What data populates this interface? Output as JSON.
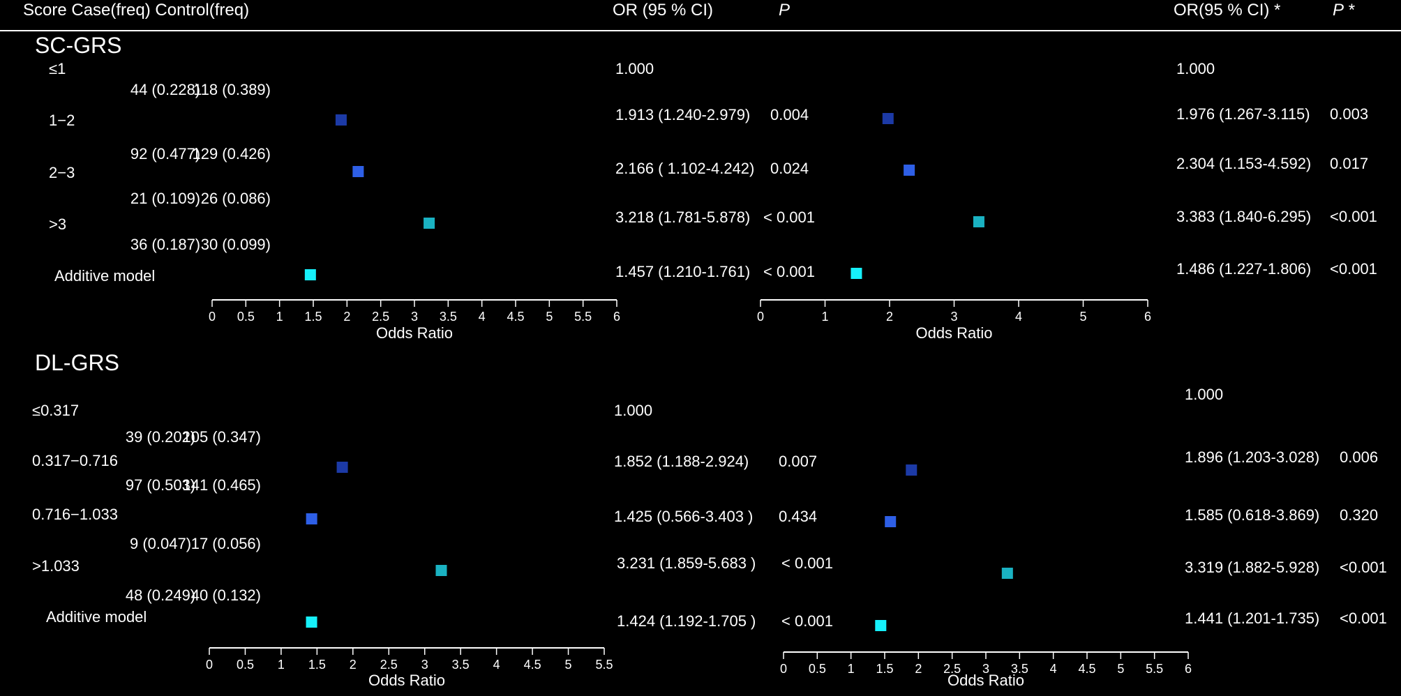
{
  "header": {
    "score_col": "Score Case(freq) Control(freq)",
    "or_col": "OR  (95 % CI)",
    "p_col": "P",
    "or_adj_col": "OR(95 % CI) *",
    "p_adj_col": "P *"
  },
  "palette": {
    "background": "#000000",
    "text": "#ffffff",
    "dark_blue": "#1c3aa6",
    "mid_blue": "#2e5fe6",
    "teal": "#1ab2c2",
    "cyan": "#16f0fa"
  },
  "chart_data": [
    {
      "type": "forest",
      "title": "SC-GRS",
      "xlabel": "Odds Ratio",
      "xlim": [
        0,
        6
      ],
      "xticks": [
        "0",
        "0.5",
        "1",
        "1.5",
        "2",
        "2.5",
        "3",
        "3.5",
        "4",
        "4.5",
        "5",
        "5.5",
        "6"
      ],
      "xlabel_adjusted": "Odds Ratio",
      "xlim_adjusted": [
        0,
        6
      ],
      "xticks_adjusted": [
        "0",
        "1",
        "2",
        "3",
        "4",
        "5",
        "6"
      ],
      "rows": [
        {
          "label": "≤1",
          "case": "44 (0.228)",
          "control": "118 (0.389)",
          "or": null,
          "or_text": "1.000",
          "p": "",
          "or_adj": null,
          "or_adj_text": "1.000",
          "p_adj": "",
          "color": "none"
        },
        {
          "label": "1−2",
          "case": "92 (0.477)",
          "control": "129 (0.426)",
          "or": 1.913,
          "or_text": "1.913 (1.240-2.979)",
          "p": "0.004",
          "or_adj": 1.976,
          "or_adj_text": "1.976 (1.267-3.115)",
          "p_adj": "0.003",
          "color": "dark_blue"
        },
        {
          "label": "2−3",
          "case": "21 (0.109)",
          "control": "26 (0.086)",
          "or": 2.166,
          "or_text": "2.166 ( 1.102-4.242)",
          "p": "0.024",
          "or_adj": 2.304,
          "or_adj_text": "2.304 (1.153-4.592)",
          "p_adj": "0.017",
          "color": "mid_blue"
        },
        {
          "label": ">3",
          "case": "36 (0.187)",
          "control": "30 (0.099)",
          "or": 3.218,
          "or_text": "3.218 (1.781-5.878)",
          "p": "< 0.001",
          "or_adj": 3.383,
          "or_adj_text": "3.383 (1.840-6.295)",
          "p_adj": "<0.001",
          "color": "teal"
        },
        {
          "label": "Additive model",
          "case": "",
          "control": "",
          "or": 1.457,
          "or_text": "1.457 (1.210-1.761)",
          "p": "< 0.001",
          "or_adj": 1.486,
          "or_adj_text": "1.486 (1.227-1.806)",
          "p_adj": "<0.001",
          "color": "cyan"
        }
      ]
    },
    {
      "type": "forest",
      "title": "DL-GRS",
      "xlabel": "Odds Ratio",
      "xlim": [
        0,
        5.5
      ],
      "xticks": [
        "0",
        "0.5",
        "1",
        "1.5",
        "2",
        "2.5",
        "3",
        "3.5",
        "4",
        "4.5",
        "5",
        "5.5"
      ],
      "xlabel_adjusted": "Odds Ratio",
      "xlim_adjusted": [
        0,
        6
      ],
      "xticks_adjusted": [
        "0",
        "0.5",
        "1",
        "1.5",
        "2",
        "2.5",
        "3",
        "3.5",
        "4",
        "4.5",
        "5",
        "5.5",
        "6"
      ],
      "rows": [
        {
          "label": "≤0.317",
          "case": "39 (0.202)",
          "control": "105 (0.347)",
          "or": null,
          "or_text": "1.000",
          "p": "",
          "or_adj": null,
          "or_adj_text": "1.000",
          "p_adj": "",
          "color": "none"
        },
        {
          "label": "0.317−0.716",
          "case": "97 (0.503)",
          "control": "141 (0.465)",
          "or": 1.852,
          "or_text": "1.852 (1.188-2.924)",
          "p": "0.007",
          "or_adj": 1.896,
          "or_adj_text": "1.896 (1.203-3.028)",
          "p_adj": "0.006",
          "color": "dark_blue"
        },
        {
          "label": "0.716−1.033",
          "case": "9 (0.047)",
          "control": "17 (0.056)",
          "or": 1.425,
          "or_text": "1.425 (0.566-3.403 )",
          "p": "0.434",
          "or_adj": 1.585,
          "or_adj_text": "1.585 (0.618-3.869)",
          "p_adj": "0.320",
          "color": "mid_blue"
        },
        {
          "label": ">1.033",
          "case": "48 (0.249)",
          "control": "40 (0.132)",
          "or": 3.231,
          "or_text": "3.231 (1.859-5.683 )",
          "p": "< 0.001",
          "or_adj": 3.319,
          "or_adj_text": "3.319 (1.882-5.928)",
          "p_adj": "<0.001",
          "color": "teal"
        },
        {
          "label": "Additive model",
          "case": "",
          "control": "",
          "or": 1.424,
          "or_text": "1.424 (1.192-1.705 )",
          "p": "< 0.001",
          "or_adj": 1.441,
          "or_adj_text": "1.441 (1.201-1.735)",
          "p_adj": "<0.001",
          "color": "cyan"
        }
      ]
    }
  ]
}
